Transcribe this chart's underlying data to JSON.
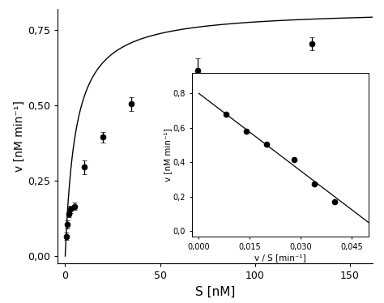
{
  "main": {
    "S_data": [
      0.5,
      1.0,
      2.0,
      3.0,
      5.0,
      10.0,
      20.0,
      35.0,
      70.0,
      130.0
    ],
    "v_data": [
      0.065,
      0.105,
      0.14,
      0.155,
      0.165,
      0.295,
      0.395,
      0.505,
      0.615,
      0.705
    ],
    "v_err": [
      0.012,
      0.013,
      0.012,
      0.013,
      0.012,
      0.022,
      0.018,
      0.022,
      0.042,
      0.022
    ],
    "Vmax": 0.82,
    "Km": 5.5,
    "xlabel": "S [nM]",
    "ylabel": "v [nM min⁻¹]",
    "xlim": [
      -4,
      162
    ],
    "ylim": [
      -0.025,
      0.82
    ],
    "xticks": [
      0,
      50,
      100,
      150
    ],
    "yticks": [
      0.0,
      0.25,
      0.5,
      0.75
    ]
  },
  "inset": {
    "x_data": [
      0.008,
      0.014,
      0.02,
      0.028,
      0.034,
      0.04
    ],
    "y_data": [
      0.68,
      0.58,
      0.505,
      0.415,
      0.275,
      0.17
    ],
    "slope": -15.0,
    "intercept": 0.8,
    "x_line_start": 0.0,
    "x_line_end": 0.053,
    "xlabel": "v / S [min⁻¹]",
    "ylabel": "v [nM min⁻¹]",
    "xlim": [
      -0.002,
      0.05
    ],
    "ylim": [
      -0.03,
      0.92
    ],
    "xticks": [
      0.0,
      0.015,
      0.03,
      0.045
    ],
    "yticks": [
      0.0,
      0.2,
      0.4,
      0.6,
      0.8
    ]
  }
}
